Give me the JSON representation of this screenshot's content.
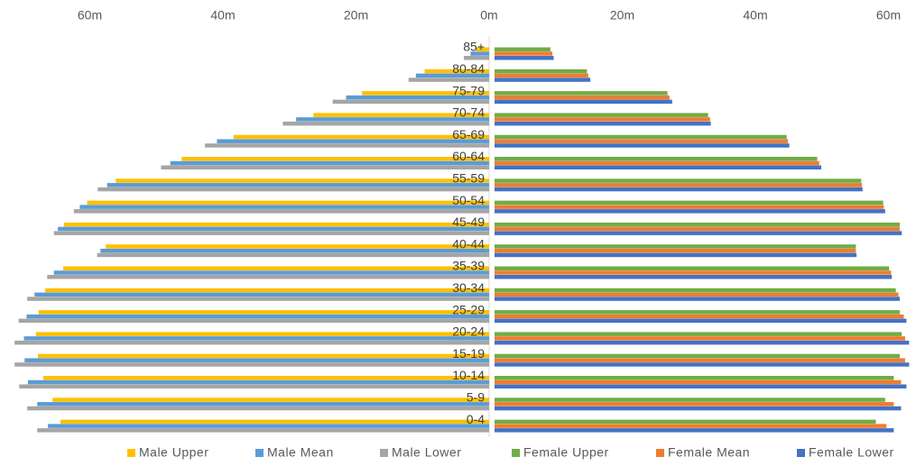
{
  "chart_data": {
    "type": "pyramid",
    "categories": [
      "85+",
      "80-84",
      "75-79",
      "70-74",
      "65-69",
      "60-64",
      "55-59",
      "50-54",
      "45-49",
      "40-44",
      "35-39",
      "30-34",
      "25-29",
      "20-24",
      "15-19",
      "10-14",
      "5-9",
      "0-4"
    ],
    "xlim": [
      0,
      72
    ],
    "xticks": [
      {
        "value": 0,
        "label": "0m"
      },
      {
        "value": 20,
        "label": "20m"
      },
      {
        "value": 40,
        "label": "40m"
      },
      {
        "value": 60,
        "label": "60m"
      }
    ],
    "series": [
      {
        "name": "Male Upper",
        "color": "#ffc000",
        "side": "left",
        "values": [
          2.0,
          9.7,
          19.1,
          26.4,
          38.4,
          46.2,
          56.1,
          60.4,
          63.9,
          57.6,
          64.0,
          66.7,
          67.7,
          68.1,
          67.8,
          67.0,
          65.6,
          64.4
        ]
      },
      {
        "name": "Male Mean",
        "color": "#5b9bd5",
        "side": "left",
        "values": [
          2.8,
          11.0,
          21.5,
          29.0,
          40.9,
          47.9,
          57.4,
          61.5,
          64.8,
          58.4,
          65.4,
          68.3,
          69.5,
          69.9,
          69.8,
          69.3,
          67.9,
          66.3
        ]
      },
      {
        "name": "Male Lower",
        "color": "#a5a5a5",
        "side": "left",
        "values": [
          3.8,
          12.1,
          23.5,
          31.0,
          42.7,
          49.3,
          58.8,
          62.4,
          65.4,
          58.9,
          66.4,
          69.4,
          70.7,
          71.3,
          71.3,
          70.6,
          69.4,
          67.9
        ]
      },
      {
        "name": "Female Upper",
        "color": "#70ad47",
        "side": "right",
        "values": [
          9.2,
          14.7,
          26.8,
          32.9,
          44.7,
          49.3,
          55.9,
          59.2,
          61.7,
          55.1,
          60.1,
          61.1,
          61.7,
          62.0,
          61.7,
          60.8,
          59.5,
          58.1
        ]
      },
      {
        "name": "Female Mean",
        "color": "#ed7d31",
        "side": "right",
        "values": [
          9.5,
          14.9,
          27.1,
          33.2,
          44.9,
          49.6,
          56.0,
          59.3,
          61.7,
          55.1,
          60.4,
          61.5,
          62.3,
          62.5,
          62.5,
          61.9,
          60.8,
          59.7
        ]
      },
      {
        "name": "Female Lower",
        "color": "#4472c4",
        "side": "right",
        "values": [
          9.7,
          15.2,
          27.5,
          33.3,
          45.1,
          49.9,
          56.1,
          59.5,
          62.0,
          55.2,
          60.5,
          61.7,
          62.7,
          63.1,
          63.1,
          62.7,
          61.9,
          60.8
        ]
      }
    ]
  }
}
